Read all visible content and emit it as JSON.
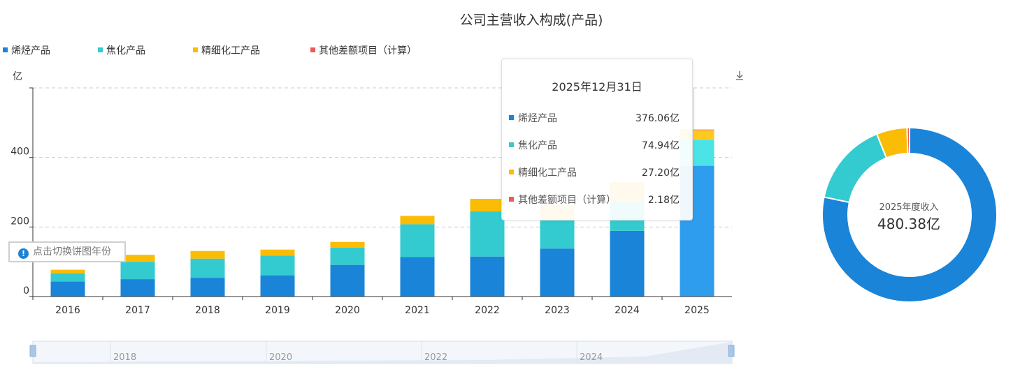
{
  "chart_data": [
    {
      "type": "bar",
      "stacked": true,
      "title": "公司主营收入构成(产品)",
      "ylabel": "亿",
      "ylim": [
        0,
        600
      ],
      "yticks": [
        0,
        200,
        400
      ],
      "grid": true,
      "legend": "top-left",
      "categories": [
        "2016",
        "2017",
        "2018",
        "2019",
        "2020",
        "2021",
        "2022",
        "2023",
        "2024",
        "2025"
      ],
      "series": [
        {
          "name": "烯烃产品",
          "color": "#1984d8",
          "values": [
            43,
            50,
            54,
            61,
            91,
            114,
            115,
            138,
            189,
            376.06
          ]
        },
        {
          "name": "焦化产品",
          "color": "#33cbd0",
          "values": [
            24,
            50,
            55,
            57,
            50,
            94,
            130,
            83,
            85,
            74.94
          ]
        },
        {
          "name": "精细化工产品",
          "color": "#fbbc05",
          "values": [
            10,
            20,
            22,
            17,
            16,
            24,
            36,
            42,
            55,
            27.2
          ]
        },
        {
          "name": "其他差额项目（计算）",
          "color": "#ee5a5a",
          "values": [
            0,
            0,
            0,
            0,
            0,
            0,
            0,
            0,
            0,
            2.18
          ]
        }
      ],
      "highlight_index": 9,
      "slider_labels": [
        "2018",
        "2020",
        "2022",
        "2024"
      ]
    },
    {
      "type": "pie",
      "donut": true,
      "center_label": "2025年度收入",
      "center_value": "480.38亿",
      "labels": [
        "烯烃产品",
        "焦化产品",
        "精细化工产品",
        "其他差额项目（计算）"
      ],
      "values": [
        376.06,
        74.94,
        27.2,
        2.18
      ],
      "colors": [
        "#1984d8",
        "#33cbd0",
        "#fbbc05",
        "#ee5a5a"
      ]
    }
  ],
  "tooltip": {
    "date": "2025年12月31日",
    "rows": [
      {
        "label": "烯烃产品",
        "value": "376.06亿"
      },
      {
        "label": "焦化产品",
        "value": "74.94亿"
      },
      {
        "label": "精细化工产品",
        "value": "27.20亿"
      },
      {
        "label": "其他差额项目（计算）",
        "value": "2.18亿"
      }
    ]
  },
  "pie_toggle_label": "点击切换饼图年份",
  "icons": {
    "download": "download-icon",
    "info": "info-icon"
  }
}
